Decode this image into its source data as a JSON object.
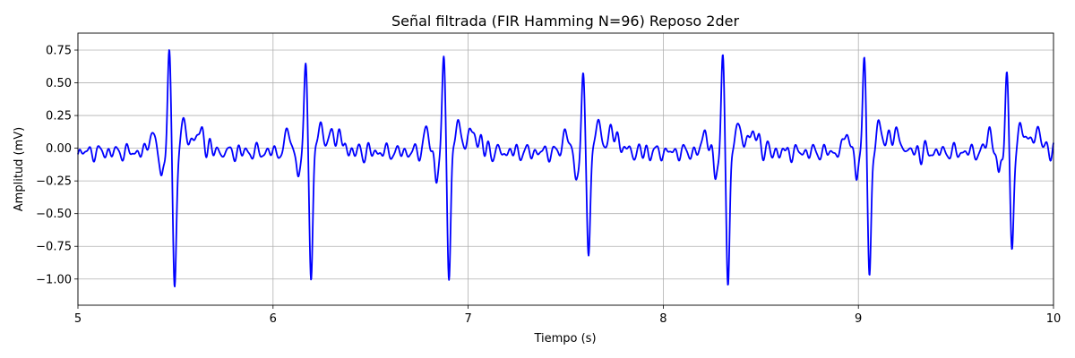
{
  "chart_data": {
    "type": "line",
    "title": "Señal filtrada (FIR Hamming N=96) Reposo 2der",
    "xlabel": "Tiempo (s)",
    "ylabel": "Amplitud (mV)",
    "xlim": [
      5,
      10
    ],
    "ylim": [
      -1.2,
      0.88
    ],
    "x_ticks": [
      5,
      6,
      7,
      8,
      9,
      10
    ],
    "x_tick_labels": [
      "5",
      "6",
      "7",
      "8",
      "9",
      "10"
    ],
    "y_ticks": [
      -1.0,
      -0.75,
      -0.5,
      -0.25,
      0.0,
      0.25,
      0.5,
      0.75
    ],
    "y_tick_labels": [
      "−1.00",
      "−0.75",
      "−0.50",
      "−0.25",
      "0.00",
      "0.25",
      "0.50",
      "0.75"
    ],
    "grid": true,
    "line_color": "#0000ff",
    "beats": [
      {
        "r_time": 5.468,
        "r_peak": 0.74,
        "s_time": 5.495,
        "s_min": -1.09
      },
      {
        "r_time": 6.168,
        "r_peak": 0.65,
        "s_time": 6.195,
        "s_min": -1.03
      },
      {
        "r_time": 6.875,
        "r_peak": 0.63,
        "s_time": 6.902,
        "s_min": -0.95
      },
      {
        "r_time": 7.59,
        "r_peak": 0.5,
        "s_time": 7.617,
        "s_min": -0.81
      },
      {
        "r_time": 8.305,
        "r_peak": 0.66,
        "s_time": 8.332,
        "s_min": -1.06
      },
      {
        "r_time": 9.03,
        "r_peak": 0.7,
        "s_time": 9.057,
        "s_min": -1.02
      },
      {
        "r_time": 9.76,
        "r_peak": 0.56,
        "s_time": 9.787,
        "s_min": -0.79
      }
    ]
  }
}
